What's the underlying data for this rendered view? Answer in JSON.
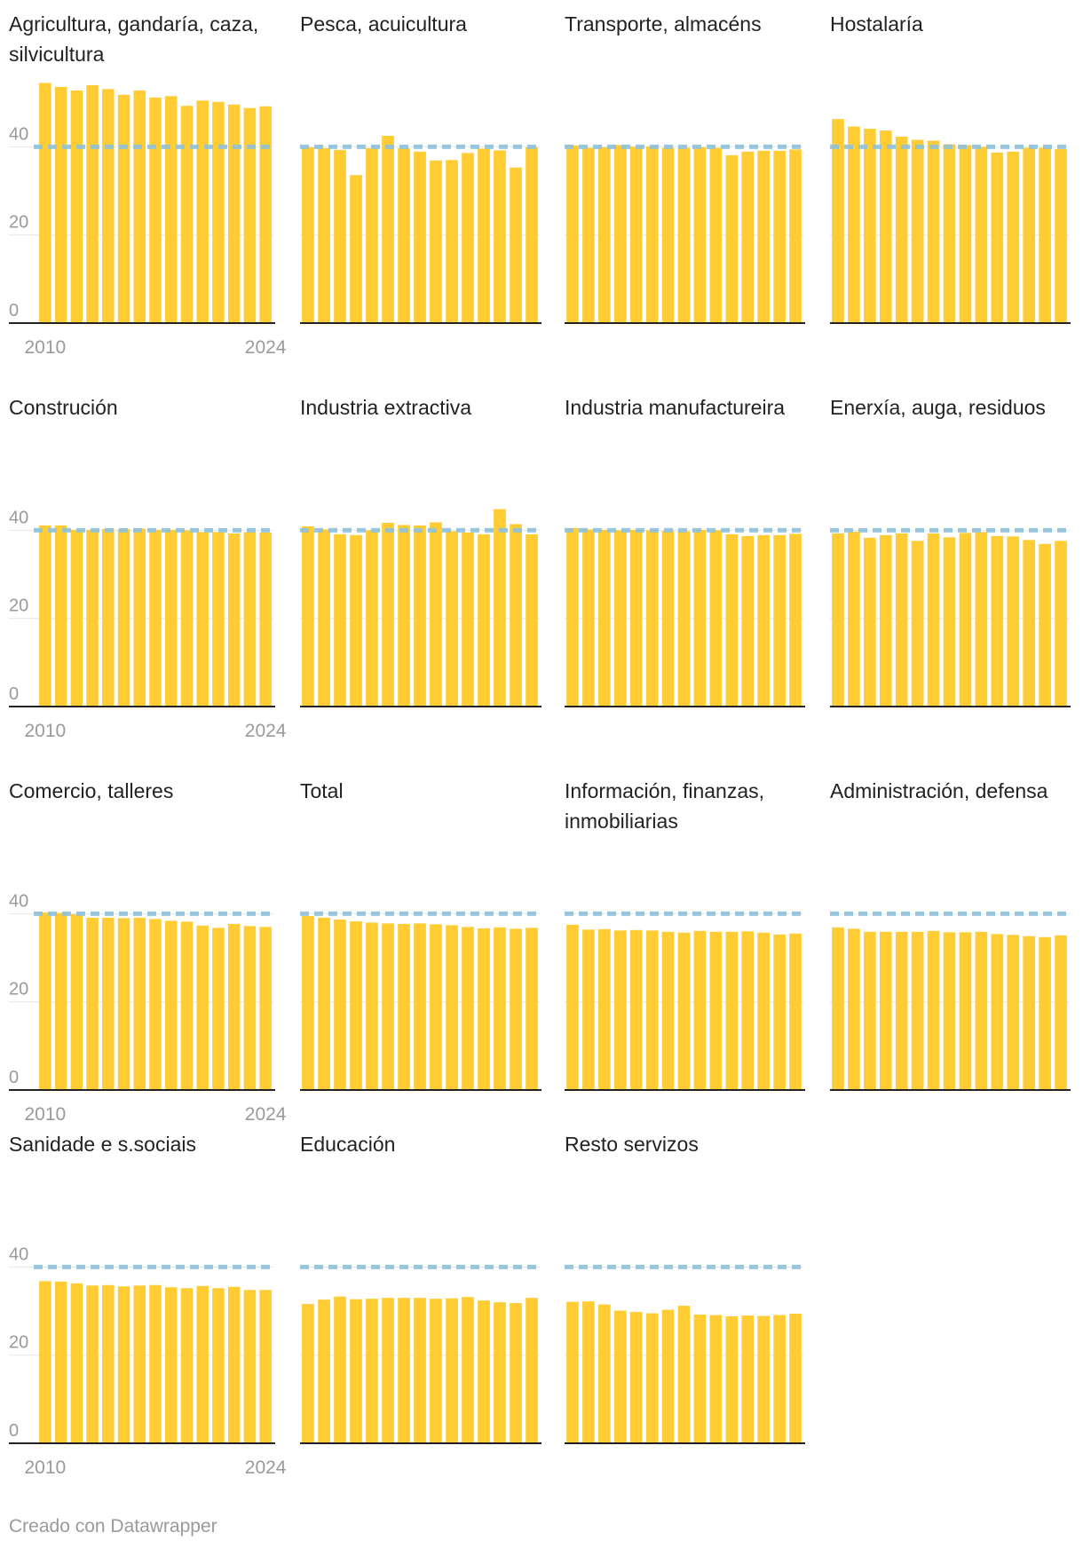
{
  "footer": {
    "text": "Creado con Datawrapper"
  },
  "colors": {
    "bar": "#ffcc33",
    "reference": "#8ec1dc",
    "baseline": "#222222",
    "grid": "#e6e6e6",
    "tick_label": "#9a9a9a",
    "title": "#222222"
  },
  "chart_data": {
    "type": "bar",
    "layout": "small-multiples",
    "years": [
      "2010",
      "2011",
      "2012",
      "2013",
      "2014",
      "2015",
      "2016",
      "2017",
      "2018",
      "2019",
      "2020",
      "2021",
      "2022",
      "2023",
      "2024"
    ],
    "x_tick_labels": [
      "2010",
      "2024"
    ],
    "y_ticks": [
      0,
      20,
      40
    ],
    "ylim": [
      0,
      56
    ],
    "reference_line": 40,
    "panels": [
      {
        "title": "Agricultura, gandaría, caza, silvicultura",
        "values": [
          54.5,
          53.6,
          52.8,
          54.0,
          53.1,
          51.8,
          52.8,
          51.2,
          51.5,
          49.3,
          50.5,
          50.2,
          49.6,
          48.8,
          49.2
        ]
      },
      {
        "title": "Pesca, acuicultura",
        "values": [
          39.9,
          39.7,
          39.3,
          33.6,
          39.7,
          42.5,
          39.7,
          38.9,
          36.9,
          37.0,
          38.6,
          39.6,
          39.2,
          35.3,
          39.9
        ]
      },
      {
        "title": "Transporte, almacéns",
        "values": [
          40.3,
          39.8,
          39.9,
          40.4,
          40.0,
          40.1,
          39.8,
          39.8,
          39.9,
          39.8,
          38.1,
          38.9,
          39.1,
          39.1,
          39.4
        ]
      },
      {
        "title": "Hostalaría",
        "values": [
          46.3,
          44.6,
          44.1,
          43.7,
          42.3,
          41.6,
          41.4,
          40.6,
          40.4,
          40.0,
          38.7,
          38.9,
          39.8,
          39.8,
          39.5
        ]
      },
      {
        "title": "Construción",
        "values": [
          41.1,
          41.1,
          40.1,
          40.1,
          40.3,
          40.3,
          40.4,
          40.1,
          40.1,
          40.0,
          39.6,
          39.6,
          39.3,
          39.6,
          39.5
        ]
      },
      {
        "title": "Industria extractiva",
        "values": [
          40.9,
          40.2,
          39.1,
          38.9,
          40.0,
          41.7,
          41.2,
          41.1,
          41.8,
          39.8,
          39.5,
          39.1,
          44.8,
          41.4,
          39.1
        ]
      },
      {
        "title": "Industria manufactureira",
        "values": [
          40.5,
          40.2,
          40.1,
          40.0,
          40.1,
          40.0,
          39.9,
          39.8,
          40.1,
          40.0,
          39.1,
          38.7,
          38.9,
          38.9,
          39.2
        ]
      },
      {
        "title": "Enerxía, auga, residuos",
        "values": [
          39.3,
          39.7,
          38.3,
          38.9,
          39.3,
          37.6,
          39.3,
          38.4,
          39.4,
          39.6,
          38.7,
          38.6,
          37.8,
          36.9,
          37.6
        ]
      },
      {
        "title": "Comercio, talleres",
        "values": [
          40.3,
          40.2,
          39.9,
          39.1,
          39.1,
          39.0,
          39.1,
          38.8,
          38.4,
          38.2,
          37.3,
          36.8,
          37.7,
          37.2,
          37.0
        ]
      },
      {
        "title": "Total",
        "values": [
          39.5,
          39.1,
          38.7,
          38.3,
          38.0,
          37.8,
          37.7,
          37.8,
          37.6,
          37.4,
          37.0,
          36.7,
          36.9,
          36.6,
          36.8
        ]
      },
      {
        "title": "Información, finanzas, inmobiliarias",
        "values": [
          37.5,
          36.4,
          36.5,
          36.2,
          36.3,
          36.2,
          35.9,
          35.7,
          36.1,
          35.9,
          35.9,
          36.0,
          35.7,
          35.3,
          35.5
        ]
      },
      {
        "title": "Administración, defensa",
        "values": [
          36.9,
          36.6,
          35.9,
          35.9,
          35.9,
          35.9,
          36.1,
          35.8,
          35.8,
          35.9,
          35.4,
          35.2,
          34.9,
          34.7,
          35.1
        ]
      },
      {
        "title": "Sanidade e s.sociais",
        "values": [
          36.8,
          36.7,
          36.3,
          35.8,
          35.9,
          35.6,
          35.8,
          35.9,
          35.4,
          35.2,
          35.7,
          35.2,
          35.5,
          34.8,
          34.8
        ]
      },
      {
        "title": "Educación",
        "values": [
          31.6,
          32.6,
          33.3,
          32.7,
          32.8,
          33.0,
          33.0,
          33.0,
          32.8,
          32.9,
          33.2,
          32.4,
          32.0,
          31.8,
          33.0
        ]
      },
      {
        "title": "Resto servizos",
        "values": [
          32.1,
          32.2,
          31.5,
          30.1,
          29.8,
          29.5,
          30.3,
          31.2,
          29.2,
          29.1,
          28.8,
          29.0,
          28.9,
          29.1,
          29.4
        ]
      }
    ]
  }
}
